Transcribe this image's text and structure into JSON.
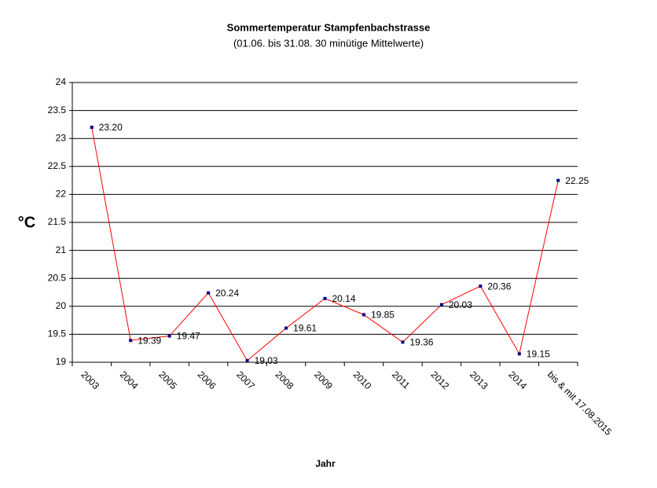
{
  "chart_data": {
    "type": "line",
    "title": "Sommertemperatur Stampfenbachstrasse",
    "subtitle": "(01.06. bis 31.08.    30 minütige Mittelwerte)",
    "ylabel": "°C",
    "xlabel": "Jahr",
    "categories": [
      "2003",
      "2004",
      "2005",
      "2006",
      "2007",
      "2008",
      "2009",
      "2010",
      "2011",
      "2012",
      "2013",
      "2014",
      "bis & mit 17.08.2015"
    ],
    "values": [
      23.2,
      19.39,
      19.47,
      20.24,
      19.03,
      19.61,
      20.14,
      19.85,
      19.36,
      20.03,
      20.36,
      19.15,
      22.25
    ],
    "value_labels": [
      "23.20",
      "19.39",
      "19.47",
      "20.24",
      "19.03",
      "19.61",
      "20.14",
      "19.85",
      "19.36",
      "20.03",
      "20.36",
      "19.15",
      "22.25"
    ],
    "color": "#ff0000",
    "marker_color": "#00008b",
    "label_color": "#0000cc",
    "ylim": [
      19,
      24
    ],
    "yticks": [
      19,
      19.5,
      20,
      20.5,
      21,
      21.5,
      22,
      22.5,
      23,
      23.5,
      24
    ],
    "grid": true
  }
}
